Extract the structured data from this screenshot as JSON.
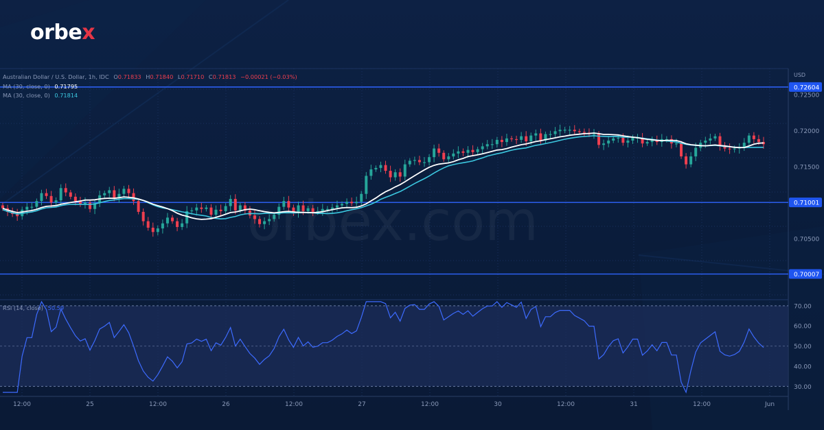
{
  "brand": {
    "logo_text": "orbe",
    "logo_accent": "x",
    "watermark": "orbex.com",
    "accent_color": "#e53646"
  },
  "legend": {
    "symbol": "Australian Dollar / U.S. Dollar, 1h, IDC",
    "o_label": "O",
    "o_value": "0.71833",
    "h_label": "H",
    "h_value": "0.71840",
    "l_label": "L",
    "l_value": "0.71710",
    "c_label": "C",
    "c_value": "0.71813",
    "change": "−0.00021 (−0.03%)",
    "ma1_label": "MA (30, close, 0)",
    "ma1_value": "0.71795",
    "ma2_label": "MA (30, close, 0)",
    "ma2_value": "0.71814"
  },
  "rsi": {
    "label": "RSI (14, close)",
    "value": "50.59",
    "levels": [
      70,
      30
    ],
    "color": "#3d6bff"
  },
  "colors": {
    "up": "#26a69a",
    "down": "#ef3f4f",
    "ma_white": "#ffffff",
    "ma_cyan": "#3cc8e0",
    "level_line": "#2f64ff",
    "rsi_band": "#1c2d5a"
  },
  "chart_data": {
    "type": "candlestick",
    "currency": "USD",
    "ylim": [
      0.6965,
      0.7286
    ],
    "price_ticks": [
      "0.72500",
      "0.72000",
      "0.71500",
      "0.70500"
    ],
    "horizontal_levels": [
      {
        "value": 0.72604,
        "label": "0.72604"
      },
      {
        "value": 0.71001,
        "label": "0.71001"
      },
      {
        "value": 0.70007,
        "label": "0.70007"
      }
    ],
    "x_ticks": [
      "12:00",
      "25",
      "12:00",
      "26",
      "12:00",
      "27",
      "12:00",
      "30",
      "12:00",
      "31",
      "12:00",
      "Jun"
    ],
    "rsi_ticks": [
      "70.00",
      "60.00",
      "50.00",
      "40.00",
      "30.00"
    ],
    "rsi_ylim": [
      25,
      73
    ],
    "close": [
      0.7092,
      0.7087,
      0.7084,
      0.7081,
      0.709,
      0.7094,
      0.7094,
      0.7102,
      0.7113,
      0.7109,
      0.71,
      0.7103,
      0.712,
      0.7114,
      0.7108,
      0.7102,
      0.7098,
      0.71,
      0.7091,
      0.7099,
      0.711,
      0.7113,
      0.7117,
      0.7106,
      0.7112,
      0.7119,
      0.7113,
      0.7102,
      0.7087,
      0.7074,
      0.7065,
      0.7059,
      0.7064,
      0.7071,
      0.7079,
      0.7074,
      0.7066,
      0.7071,
      0.7088,
      0.7089,
      0.7093,
      0.7091,
      0.7093,
      0.7083,
      0.709,
      0.7088,
      0.7095,
      0.7105,
      0.7089,
      0.7096,
      0.7089,
      0.7082,
      0.7077,
      0.707,
      0.7074,
      0.7077,
      0.7083,
      0.7094,
      0.7102,
      0.7093,
      0.7086,
      0.7096,
      0.7088,
      0.7092,
      0.7087,
      0.7088,
      0.7091,
      0.7091,
      0.7093,
      0.7096,
      0.7098,
      0.7101,
      0.7099,
      0.7101,
      0.7112,
      0.7137,
      0.7146,
      0.7148,
      0.7152,
      0.7144,
      0.7135,
      0.7142,
      0.7136,
      0.7153,
      0.7158,
      0.7159,
      0.7156,
      0.7156,
      0.7163,
      0.7175,
      0.7169,
      0.716,
      0.7164,
      0.7168,
      0.7171,
      0.7169,
      0.7173,
      0.717,
      0.7174,
      0.7178,
      0.7181,
      0.7181,
      0.7187,
      0.7184,
      0.7189,
      0.7188,
      0.7187,
      0.7192,
      0.7185,
      0.7193,
      0.7196,
      0.7186,
      0.7195,
      0.7195,
      0.7199,
      0.7201,
      0.7201,
      0.7201,
      0.7199,
      0.7198,
      0.7197,
      0.7195,
      0.7195,
      0.718,
      0.7182,
      0.7186,
      0.7189,
      0.719,
      0.7183,
      0.7186,
      0.719,
      0.719,
      0.7182,
      0.7184,
      0.7187,
      0.7184,
      0.7188,
      0.7188,
      0.7182,
      0.7182,
      0.7164,
      0.7153,
      0.7164,
      0.7176,
      0.7183,
      0.7186,
      0.7189,
      0.7192,
      0.7178,
      0.7175,
      0.7174,
      0.7175,
      0.7177,
      0.7183,
      0.7193,
      0.7188,
      0.7184,
      0.7181
    ]
  }
}
